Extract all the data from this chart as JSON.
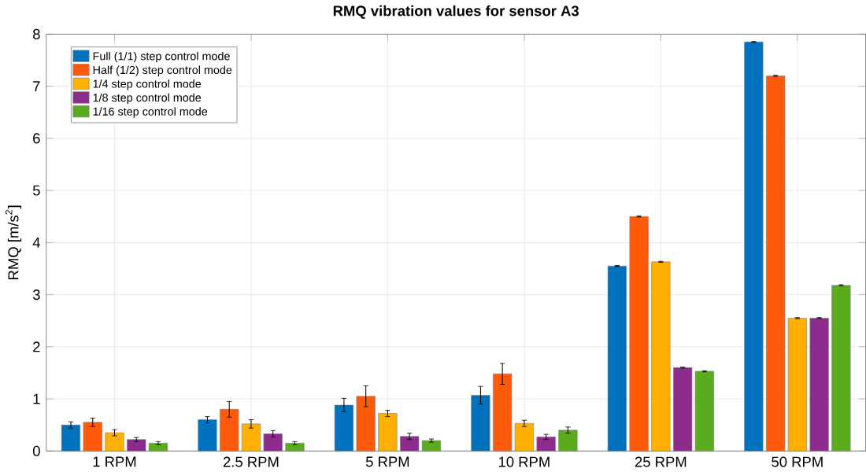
{
  "chart_data": {
    "type": "bar",
    "title": "RMQ vibration values for sensor A3",
    "ylabel": "RMQ [m/s$^{2}$]",
    "categories": [
      "1 RPM",
      "2.5 RPM",
      "5 RPM",
      "10 RPM",
      "25 RPM",
      "50 RPM"
    ],
    "series": [
      {
        "name": "Full (1/1) step control mode",
        "color": "#0072bd",
        "values": [
          0.5,
          0.6,
          0.88,
          1.07,
          3.55,
          7.85
        ],
        "errors": [
          0.06,
          0.06,
          0.13,
          0.17,
          0.01,
          0.01
        ]
      },
      {
        "name": "Half (1/2) step control mode",
        "color": "#ff5a0a",
        "values": [
          0.55,
          0.8,
          1.05,
          1.48,
          4.5,
          7.2
        ],
        "errors": [
          0.08,
          0.15,
          0.2,
          0.2,
          0.01,
          0.01
        ]
      },
      {
        "name": "1/4 step control mode",
        "color": "#ffb000",
        "values": [
          0.35,
          0.52,
          0.72,
          0.53,
          3.63,
          2.55
        ],
        "errors": [
          0.06,
          0.08,
          0.06,
          0.06,
          0.01,
          0.01
        ]
      },
      {
        "name": "1/8 step control mode",
        "color": "#8e2c8e",
        "values": [
          0.22,
          0.33,
          0.28,
          0.27,
          1.6,
          2.55
        ],
        "errors": [
          0.04,
          0.06,
          0.06,
          0.05,
          0.01,
          0.01
        ]
      },
      {
        "name": "1/16 step control mode",
        "color": "#5aac1e",
        "values": [
          0.15,
          0.15,
          0.2,
          0.4,
          1.53,
          3.18
        ],
        "errors": [
          0.03,
          0.03,
          0.03,
          0.06,
          0.01,
          0.01
        ]
      }
    ],
    "ylim": [
      0,
      8
    ],
    "yticks": [
      0,
      1,
      2,
      3,
      4,
      5,
      6,
      7,
      8
    ],
    "grid": true,
    "legend": "top left"
  }
}
